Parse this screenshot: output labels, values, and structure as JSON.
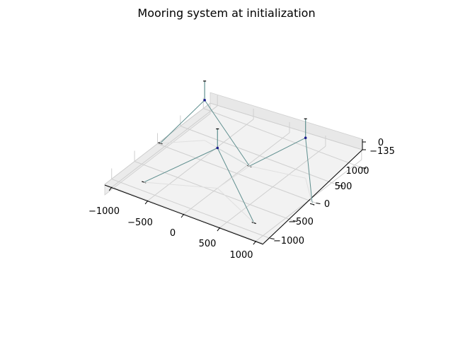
{
  "chart_data": {
    "type": "3d-line",
    "title": "Mooring system at initialization",
    "x_ticks": [
      "−1000",
      "−500",
      "0",
      "500",
      "1000"
    ],
    "y_ticks": [
      "−1000",
      "−500",
      "0",
      "500",
      "1000"
    ],
    "z_ticks": [
      "−135",
      "0"
    ],
    "xlim": [
      -1100,
      1100
    ],
    "ylim": [
      -1150,
      1150
    ],
    "zlim": [
      -135,
      0
    ],
    "grid": true,
    "line_color": "#5f8f8f",
    "node_color": "#000000",
    "platforms": [
      {
        "name": "",
        "x": -700,
        "y": 400
      },
      {
        "name": "",
        "x": 700,
        "y": 400
      },
      {
        "name": "",
        "x": 0,
        "y": -420
      }
    ],
    "anchor_points": [
      {
        "x": -1080,
        "y": 30
      },
      {
        "x": 30,
        "y": 230
      },
      {
        "x": 1080,
        "y": -50
      },
      {
        "x": -760,
        "y": -830
      },
      {
        "x": 760,
        "y": -820
      }
    ]
  }
}
